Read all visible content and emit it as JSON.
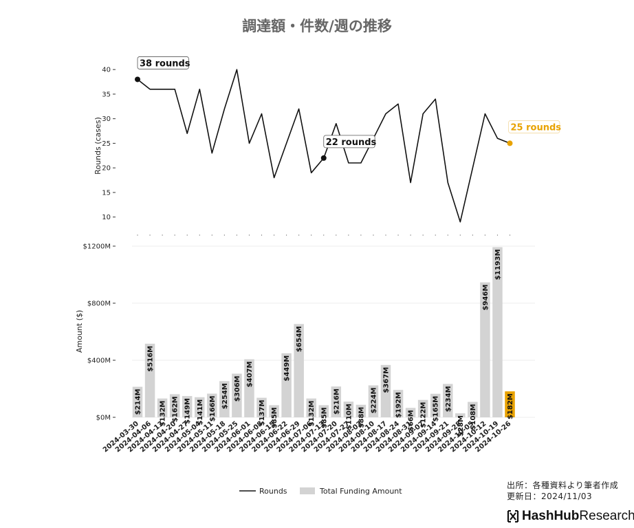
{
  "title": "調達額・件数/週の推移",
  "source": "出所：各種資料より筆者作成",
  "updated": "更新日：2024/11/03",
  "brand": {
    "bold": "HashHub",
    "light": "Research"
  },
  "colors": {
    "line": "#111111",
    "bar": "#d3d3d3",
    "highlight": "#e8a200"
  },
  "chart_data": {
    "type": "line+bar",
    "categories": [
      "2024-03-30",
      "2024-04-06",
      "2024-04-13",
      "2024-04-20",
      "2024-04-27",
      "2024-05-04",
      "2024-05-11",
      "2024-05-18",
      "2024-05-25",
      "2024-06-01",
      "2024-06-08",
      "2024-06-15",
      "2024-06-22",
      "2024-06-29",
      "2024-07-06",
      "2024-07-13",
      "2024-07-20",
      "2024-07-27",
      "2024-08-03",
      "2024-08-10",
      "2024-08-17",
      "2024-08-24",
      "2024-08-31",
      "2024-09-07",
      "2024-09-14",
      "2024-09-21",
      "2024-09-28",
      "2024-10-05",
      "2024-10-12",
      "2024-10-19",
      "2024-10-26"
    ],
    "series": [
      {
        "name": "Rounds",
        "type": "line",
        "values": [
          38,
          36,
          36,
          36,
          27,
          36,
          23,
          32,
          40,
          25,
          31,
          18,
          25,
          32,
          19,
          22,
          29,
          21,
          21,
          26,
          31,
          33,
          17,
          31,
          34,
          17,
          9,
          20,
          31,
          26,
          25
        ]
      },
      {
        "name": "Total Funding Amount",
        "type": "bar",
        "values": [
          214,
          516,
          132,
          162,
          149,
          141,
          166,
          254,
          306,
          407,
          137,
          85,
          449,
          654,
          132,
          85,
          216,
          110,
          88,
          224,
          367,
          192,
          66,
          122,
          165,
          234,
          28,
          108,
          946,
          1193,
          182
        ],
        "labels": [
          "$214M",
          "$516M",
          "$132M",
          "$162M",
          "$149M",
          "$141M",
          "$166M",
          "$254M",
          "$306M",
          "$407M",
          "$137M",
          "$85M",
          "$449M",
          "$654M",
          "$132M",
          "$85M",
          "$216M",
          "$110M",
          "$88M",
          "$224M",
          "$367M",
          "$192M",
          "$66M",
          "$122M",
          "$165M",
          "$234M",
          "$28M",
          "$108M",
          "$946M",
          "$1193M",
          "$182M"
        ]
      }
    ],
    "rounds_axis": {
      "label": "Rounds (cases)",
      "ylim": [
        8,
        41
      ],
      "ticks": [
        "10",
        "15",
        "20",
        "25",
        "30",
        "35",
        "40"
      ]
    },
    "amount_axis": {
      "label": "Amount ($)",
      "ylim": [
        0,
        1200
      ],
      "ticks": [
        "$0M",
        "$400M",
        "$800M",
        "$1200M"
      ]
    },
    "annotations": [
      "38 rounds",
      "22 rounds",
      "25 rounds"
    ],
    "legend": {
      "position": "bottom-center",
      "items": [
        "Rounds",
        "Total Funding Amount"
      ]
    },
    "grid": true
  }
}
